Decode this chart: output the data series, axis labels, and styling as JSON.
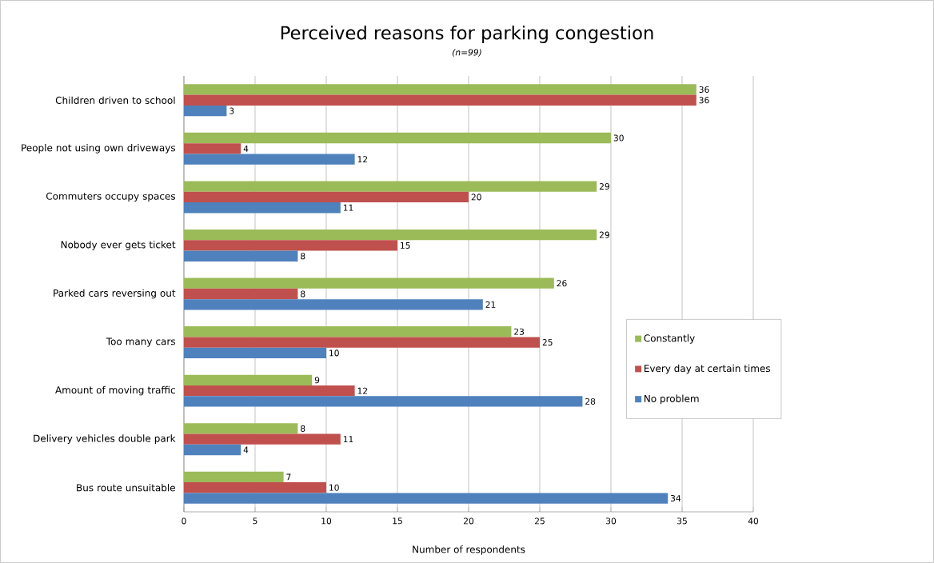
{
  "chart_data": {
    "type": "bar",
    "orientation": "horizontal",
    "title": "Perceived reasons for parking congestion",
    "subtitle": "*(n=99)*",
    "xlabel": "Number of respondents",
    "categories": [
      "Children driven to school",
      "People not using own driveways",
      "Commuters occupy spaces",
      "Nobody ever gets ticket",
      "Parked cars reversing out",
      "Too many cars",
      "Amount of moving traffic",
      "Delivery vehicles double park",
      "Bus route unsuitable"
    ],
    "series": [
      {
        "name": "Constantly",
        "color": "#9bbb59",
        "values": [
          36,
          30,
          29,
          29,
          26,
          23,
          9,
          8,
          7
        ]
      },
      {
        "name": "Every day at certain times",
        "color": "#c0504d",
        "values": [
          36,
          4,
          20,
          15,
          8,
          25,
          12,
          11,
          10
        ]
      },
      {
        "name": "No problem",
        "color": "#4f81bd",
        "values": [
          3,
          12,
          11,
          8,
          21,
          10,
          28,
          4,
          34
        ]
      }
    ],
    "xlim": [
      0,
      40
    ],
    "xticks": [
      0,
      5,
      10,
      15,
      20,
      25,
      30,
      35,
      40
    ],
    "grid": "x",
    "legend": "right",
    "data_labels": true
  }
}
